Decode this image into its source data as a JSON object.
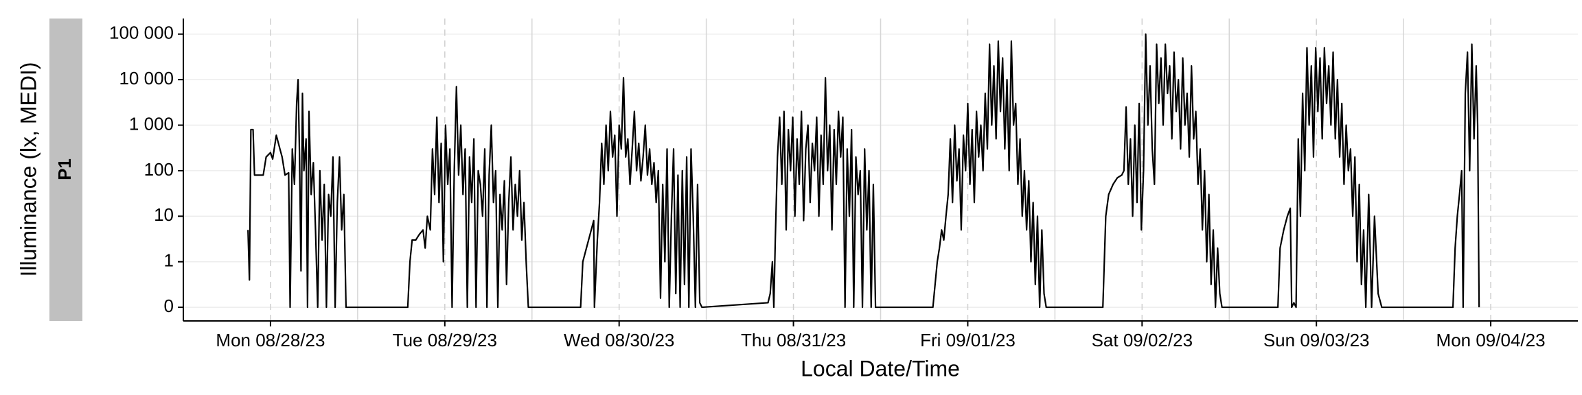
{
  "chart_data": {
    "type": "line",
    "xlabel": "Local Date/Time",
    "ylabel": "Illuminance (lx, MEDI)",
    "yscale": "symlog",
    "grid": true,
    "xlim": [
      0,
      192
    ],
    "xticks": [
      {
        "value": 12,
        "label": "Mon 08/28/23"
      },
      {
        "value": 36,
        "label": "Tue 08/29/23"
      },
      {
        "value": 60,
        "label": "Wed 08/30/23"
      },
      {
        "value": 84,
        "label": "Thu 08/31/23"
      },
      {
        "value": 108,
        "label": "Fri 09/01/23"
      },
      {
        "value": 132,
        "label": "Sat 09/02/23"
      },
      {
        "value": 156,
        "label": "Sun 09/03/23"
      },
      {
        "value": 180,
        "label": "Mon 09/04/23"
      }
    ],
    "xgrid_minor": [
      24,
      48,
      72,
      96,
      120,
      144,
      168
    ],
    "ylim": [
      -0.3,
      220000
    ],
    "yticks": [
      0,
      1,
      10,
      100,
      {
        "value": 1000,
        "label": "1 000"
      },
      {
        "value": 10000,
        "label": "10 000"
      },
      {
        "value": 100000,
        "label": "100 000"
      }
    ],
    "x": [
      8.9,
      9.1,
      9.3,
      9.6,
      9.8,
      11,
      11.4,
      12,
      12.3,
      12.8,
      13.3,
      13.6,
      14,
      14.5,
      14.7,
      15,
      15.3,
      15.6,
      15.8,
      16,
      16.2,
      16.4,
      16.6,
      16.9,
      17.1,
      17.3,
      17.6,
      17.9,
      18.2,
      18.5,
      18.8,
      19.1,
      19.4,
      19.7,
      20,
      20.3,
      20.6,
      20.9,
      21.2,
      21.5,
      21.8,
      22.1,
      22.4,
      30.9,
      31.2,
      31.5,
      32,
      32.5,
      33,
      33.3,
      33.6,
      34,
      34.3,
      34.6,
      34.9,
      35.2,
      35.5,
      35.8,
      36.1,
      36.4,
      36.7,
      37,
      37.3,
      37.6,
      37.9,
      38.2,
      38.5,
      38.8,
      39.1,
      39.4,
      39.7,
      40,
      40.3,
      40.6,
      40.9,
      41.2,
      41.5,
      41.8,
      42.1,
      42.4,
      42.7,
      43,
      43.3,
      43.6,
      43.9,
      44.2,
      44.5,
      44.8,
      45.1,
      45.4,
      45.7,
      46,
      46.3,
      46.6,
      46.9,
      47.2,
      47.5,
      54.7,
      55,
      55.5,
      56,
      56.5,
      56.6,
      57,
      57.3,
      57.6,
      57.9,
      58.2,
      58.5,
      58.8,
      59.1,
      59.4,
      59.7,
      60,
      60.3,
      60.6,
      60.9,
      61.2,
      61.5,
      61.8,
      62.1,
      62.4,
      62.7,
      63,
      63.3,
      63.6,
      63.9,
      64.2,
      64.5,
      64.8,
      65.1,
      65.4,
      65.7,
      66,
      66.3,
      66.6,
      66.9,
      67.2,
      67.5,
      67.8,
      68.1,
      68.4,
      68.7,
      69,
      69.3,
      69.6,
      69.9,
      70.2,
      70.5,
      70.8,
      71.1,
      71.4,
      80.5,
      80.8,
      81.1,
      81.3,
      81.5,
      81.8,
      82.1,
      82.4,
      82.7,
      83,
      83.3,
      83.6,
      83.9,
      84.2,
      84.5,
      84.8,
      85.1,
      85.4,
      85.7,
      86,
      86.3,
      86.6,
      86.9,
      87.2,
      87.5,
      87.8,
      88.1,
      88.4,
      88.7,
      89,
      89.3,
      89.6,
      89.9,
      90.2,
      90.5,
      90.8,
      91.1,
      91.4,
      91.7,
      92,
      92.3,
      92.6,
      92.9,
      93.2,
      93.5,
      93.8,
      94.1,
      94.4,
      94.7,
      95,
      95.3,
      103.2,
      103.5,
      103.8,
      104.1,
      104.4,
      104.7,
      105,
      105.3,
      105.6,
      105.9,
      106.2,
      106.5,
      106.8,
      107.1,
      107.4,
      107.7,
      108,
      108.3,
      108.6,
      108.9,
      109.2,
      109.5,
      109.8,
      110.1,
      110.4,
      110.7,
      111,
      111.3,
      111.6,
      111.9,
      112.2,
      112.5,
      112.8,
      113.1,
      113.4,
      113.7,
      114,
      114.3,
      114.6,
      114.9,
      115.2,
      115.5,
      115.8,
      116.1,
      116.4,
      116.7,
      117,
      117.3,
      117.6,
      117.9,
      118.2,
      118.5,
      118.8,
      126.6,
      127,
      127.4,
      128,
      128.6,
      129.2,
      129.5,
      129.8,
      130.1,
      130.4,
      130.7,
      131,
      131.3,
      131.6,
      131.9,
      132.2,
      132.5,
      132.8,
      133.1,
      133.4,
      133.7,
      134,
      134.3,
      134.6,
      134.9,
      135.2,
      135.5,
      135.8,
      136.1,
      136.4,
      136.7,
      137,
      137.3,
      137.6,
      137.9,
      138.2,
      138.5,
      138.8,
      139.1,
      139.4,
      139.7,
      140,
      140.3,
      140.6,
      140.9,
      141.2,
      141.5,
      141.8,
      142.1,
      142.4,
      142.7,
      143,
      150.7,
      151,
      151.5,
      152,
      152.4,
      152.6,
      152.9,
      153.2,
      153.5,
      153.8,
      154.1,
      154.4,
      154.7,
      155,
      155.3,
      155.6,
      155.9,
      156.2,
      156.5,
      156.8,
      157.1,
      157.4,
      157.7,
      158,
      158.3,
      158.6,
      158.9,
      159.2,
      159.5,
      159.8,
      160.1,
      160.4,
      160.7,
      161,
      161.3,
      161.6,
      161.9,
      162.2,
      162.5,
      162.8,
      163.2,
      163.6,
      164,
      164.5,
      165,
      174.8,
      175.1,
      175.4,
      175.7,
      176,
      176.2,
      176.5,
      176.8,
      177.1,
      177.4,
      177.7,
      178,
      178.2,
      178.4
    ],
    "series": [
      {
        "name": "P1",
        "color": "#000000",
        "values": [
          5,
          0.6,
          800,
          800,
          80,
          80,
          200,
          250,
          180,
          600,
          300,
          200,
          80,
          90,
          0,
          300,
          50,
          3000,
          10000,
          200,
          0.8,
          5000,
          100,
          500,
          0,
          2000,
          30,
          150,
          5,
          0,
          100,
          3,
          50,
          0,
          30,
          10,
          200,
          0,
          20,
          200,
          5,
          30,
          0,
          0,
          1,
          3,
          3,
          4,
          5,
          2,
          10,
          5,
          300,
          30,
          1500,
          20,
          400,
          1,
          1000,
          50,
          300,
          0,
          100,
          7000,
          80,
          1000,
          30,
          300,
          0,
          200,
          20,
          500,
          0,
          100,
          50,
          10,
          300,
          0,
          80,
          1000,
          20,
          100,
          0,
          30,
          5,
          60,
          0.5,
          20,
          200,
          5,
          50,
          10,
          100,
          3,
          20,
          1,
          0,
          0,
          1,
          2,
          4,
          8,
          0,
          3,
          20,
          400,
          50,
          1000,
          100,
          2000,
          200,
          600,
          10,
          1000,
          300,
          11000,
          200,
          500,
          50,
          300,
          2000,
          100,
          400,
          60,
          200,
          1000,
          80,
          300,
          50,
          150,
          20,
          100,
          0.2,
          50,
          1,
          300,
          0,
          10,
          300,
          0.3,
          80,
          0,
          100,
          0.5,
          200,
          0,
          300,
          10,
          0,
          50,
          0.1,
          0,
          0.1,
          0.3,
          1,
          0,
          3,
          200,
          1500,
          50,
          2000,
          5,
          800,
          100,
          1500,
          10,
          500,
          50,
          2000,
          8,
          300,
          1000,
          20,
          400,
          100,
          1500,
          10,
          600,
          50,
          11000,
          100,
          1000,
          5,
          800,
          50,
          2000,
          200,
          1500,
          0,
          300,
          10,
          800,
          0,
          200,
          30,
          100,
          0,
          300,
          5,
          100,
          0,
          50,
          0,
          0,
          0.5,
          1,
          2,
          5,
          3,
          10,
          30,
          500,
          20,
          1000,
          60,
          300,
          5,
          600,
          100,
          3000,
          50,
          800,
          20,
          2000,
          200,
          1000,
          100,
          5000,
          300,
          60000,
          1000,
          20000,
          500,
          70000,
          2000,
          30000,
          300,
          10000,
          100,
          70000,
          1000,
          3000,
          50,
          500,
          10,
          100,
          5,
          60,
          1,
          20,
          0.5,
          10,
          0,
          5,
          0.3,
          0,
          0,
          10,
          30,
          50,
          70,
          80,
          100,
          2500,
          50,
          500,
          10,
          1000,
          20,
          3000,
          5,
          100,
          100000,
          1000,
          20000,
          300,
          50,
          60000,
          3000,
          30000,
          1000,
          60000,
          5000,
          20000,
          500,
          40000,
          2000,
          10000,
          300,
          30000,
          1000,
          5000,
          200,
          20000,
          500,
          2000,
          50,
          300,
          5,
          100,
          1,
          30,
          0.5,
          5,
          0,
          2,
          0.3,
          0,
          0,
          2,
          5,
          10,
          15,
          0,
          0.1,
          0,
          500,
          10,
          5000,
          100,
          50000,
          1000,
          20000,
          200,
          50000,
          2000,
          30000,
          500,
          50000,
          3000,
          20000,
          1000,
          40000,
          500,
          10000,
          200,
          3000,
          50,
          1000,
          100,
          300,
          10,
          200,
          1,
          50,
          0.5,
          5,
          0,
          30,
          0,
          10,
          0.3,
          0,
          0,
          2,
          10,
          30,
          100,
          0,
          5000,
          40000,
          100,
          60000,
          500,
          20000,
          1000,
          0
        ]
      }
    ]
  }
}
